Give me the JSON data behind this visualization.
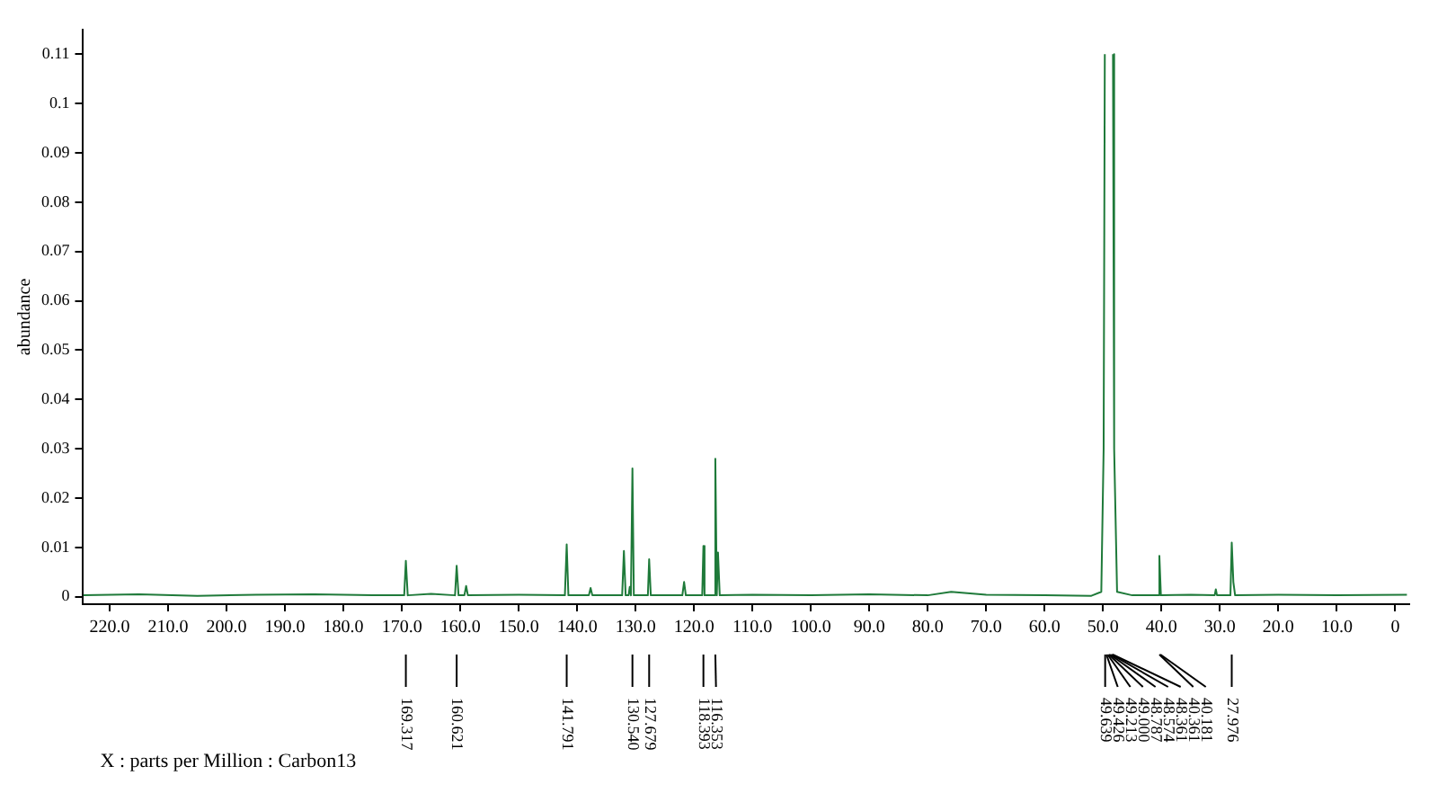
{
  "chart_data": {
    "type": "line",
    "ylabel": "abundance",
    "xlim": [
      224.7,
      -2.4
    ],
    "ylim": [
      -0.0015,
      0.115
    ],
    "xticks": [
      {
        "value": 220,
        "label": "220.0"
      },
      {
        "value": 210,
        "label": "210.0"
      },
      {
        "value": 200,
        "label": "200.0"
      },
      {
        "value": 190,
        "label": "190.0"
      },
      {
        "value": 180,
        "label": "180.0"
      },
      {
        "value": 170,
        "label": "170.0"
      },
      {
        "value": 160,
        "label": "160.0"
      },
      {
        "value": 150,
        "label": "150.0"
      },
      {
        "value": 140,
        "label": "140.0"
      },
      {
        "value": 130,
        "label": "130.0"
      },
      {
        "value": 120,
        "label": "120.0"
      },
      {
        "value": 110,
        "label": "110.0"
      },
      {
        "value": 100,
        "label": "100.0"
      },
      {
        "value": 90,
        "label": "90.0"
      },
      {
        "value": 80,
        "label": "80.0"
      },
      {
        "value": 70,
        "label": "70.0"
      },
      {
        "value": 60,
        "label": "60.0"
      },
      {
        "value": 50,
        "label": "50.0"
      },
      {
        "value": 40,
        "label": "40.0"
      },
      {
        "value": 30,
        "label": "30.0"
      },
      {
        "value": 20,
        "label": "20.0"
      },
      {
        "value": 10,
        "label": "10.0"
      },
      0
    ],
    "yticks": [
      0,
      0.01,
      0.02,
      0.03,
      0.04,
      0.05,
      0.06,
      0.07,
      0.08,
      0.09,
      0.1,
      0.11
    ],
    "grid": false,
    "legend": false,
    "marker": "none",
    "line_style": "solid",
    "series": [
      {
        "color": "#1f7a3a",
        "x": [
          224.5,
          215,
          205,
          195,
          185,
          175,
          169.6,
          169.317,
          169.0,
          165,
          160.9,
          160.621,
          160.3,
          159.3,
          159.0,
          158.7,
          150,
          142.1,
          141.791,
          141.5,
          138,
          137.7,
          137.4,
          132.3,
          132.0,
          131.7,
          131.2,
          131.0,
          130.8,
          130.54,
          130.3,
          127.9,
          127.679,
          127.4,
          122,
          121.7,
          121.4,
          118.6,
          118.393,
          118.2,
          116.6,
          116.353,
          116.1,
          115.9,
          115.6,
          110,
          100,
          90,
          80,
          76,
          70,
          60,
          52,
          50.3,
          49.9,
          49.7,
          49.6,
          48.4,
          48.3,
          48.1,
          47.6,
          45,
          40.6,
          40.361,
          40.1,
          35,
          30.9,
          30.7,
          30.5,
          28.2,
          27.976,
          27.7,
          27.4,
          20,
          10,
          -2
        ],
        "values": [
          0.0003,
          0.0005,
          0.0002,
          0.0004,
          0.0005,
          0.0003,
          0.0003,
          0.0073,
          0.0003,
          0.0006,
          0.0003,
          0.0063,
          0.0003,
          0.0003,
          0.0022,
          0.0003,
          0.0004,
          0.0003,
          0.0106,
          0.0003,
          0.0003,
          0.0018,
          0.0003,
          0.0003,
          0.0093,
          0.0003,
          0.0003,
          0.002,
          0.0003,
          0.026,
          0.0003,
          0.0003,
          0.0076,
          0.0003,
          0.0003,
          0.003,
          0.0003,
          0.0003,
          0.0103,
          0.0003,
          0.0003,
          0.028,
          0.0003,
          0.009,
          0.0003,
          0.0004,
          0.0003,
          0.0005,
          0.0003,
          0.001,
          0.0004,
          0.0003,
          0.0002,
          0.001,
          0.03,
          0.11,
          null,
          null,
          0.11,
          0.03,
          0.001,
          0.0003,
          0.0003,
          0.0083,
          0.0003,
          0.0004,
          0.0003,
          0.0015,
          0.0003,
          0.0003,
          0.011,
          0.003,
          0.0003,
          0.0004,
          0.0003,
          0.0004
        ]
      }
    ],
    "annotations": [
      {
        "text": "169.317",
        "x": 169.317
      },
      {
        "text": "160.621",
        "x": 160.621
      },
      {
        "text": "141.791",
        "x": 141.791
      },
      {
        "text": "130.540",
        "x": 130.54
      },
      {
        "text": "127.679",
        "x": 127.679
      },
      {
        "text": "118.393",
        "x": 118.393
      },
      {
        "text": "116.353",
        "x": 116.353
      },
      {
        "text": "49.639",
        "x": 49.639
      },
      {
        "text": "49.426",
        "x": 49.426
      },
      {
        "text": "49.213",
        "x": 49.213
      },
      {
        "text": "49.000",
        "x": 49.0
      },
      {
        "text": "48.787",
        "x": 48.787
      },
      {
        "text": "48.574",
        "x": 48.574
      },
      {
        "text": "48.361",
        "x": 48.361
      },
      {
        "text": "40.361",
        "x": 40.361
      },
      {
        "text": "40.181",
        "x": 40.181
      },
      {
        "text": "27.976",
        "x": 27.976
      },
      "X : parts per Million : Carbon13"
    ]
  }
}
